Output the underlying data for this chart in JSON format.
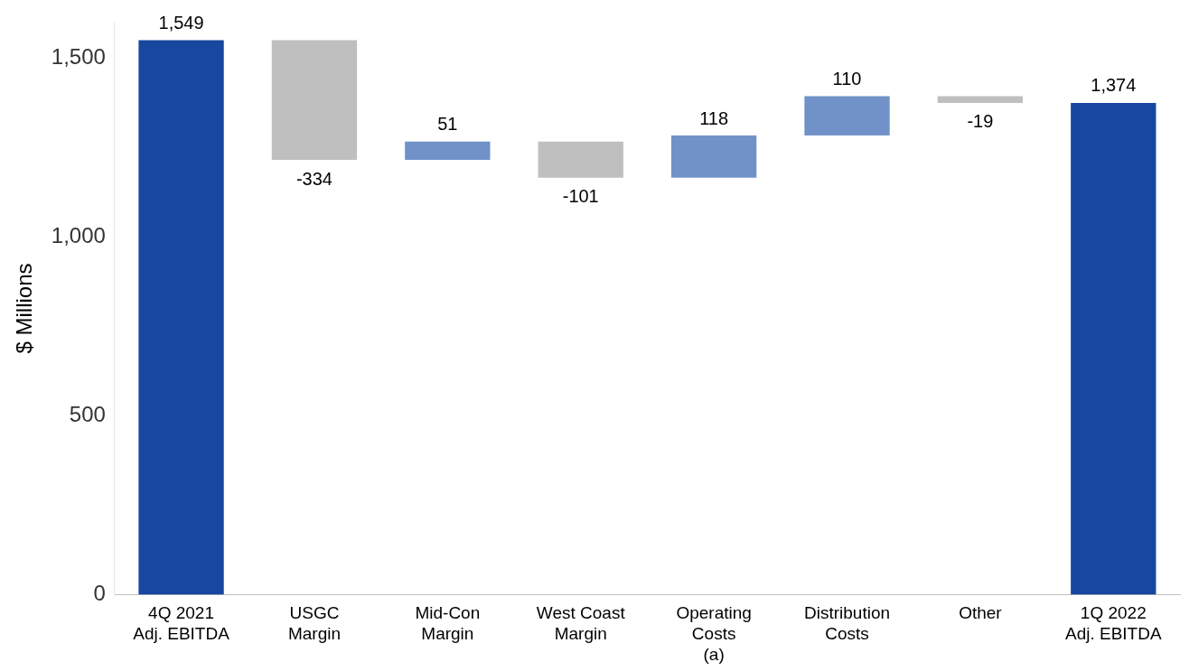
{
  "chart_data": {
    "type": "bar",
    "ylabel": "$ Millions",
    "categories": [
      "4Q 2021\nAdj. EBITDA",
      "USGC\nMargin",
      "Mid-Con\nMargin",
      "West Coast\nMargin",
      "Operating\nCosts\n(a)",
      "Distribution\nCosts",
      "Other",
      "1Q 2022\nAdj. EBITDA"
    ],
    "values": [
      1549,
      -334,
      51,
      -101,
      118,
      110,
      -19,
      1374
    ],
    "base": [
      0,
      1549,
      1215,
      1266,
      1165,
      1283,
      1393,
      0
    ],
    "colors": [
      "#17479e",
      "#bfbfbf",
      "#7092c8",
      "#bfbfbf",
      "#7092c8",
      "#7092c8",
      "#bfbfbf",
      "#17479e"
    ],
    "ylim": [
      0,
      1600
    ],
    "yticks": [
      0,
      500,
      {
        "value": 1000,
        "label": "1,000"
      },
      {
        "value": 1500,
        "label": "1,500"
      }
    ],
    "value_labels": [
      "1,549",
      "-334",
      "51",
      "-101",
      "118",
      "110",
      "-19",
      "1,374"
    ],
    "grid": false,
    "legend": false
  }
}
